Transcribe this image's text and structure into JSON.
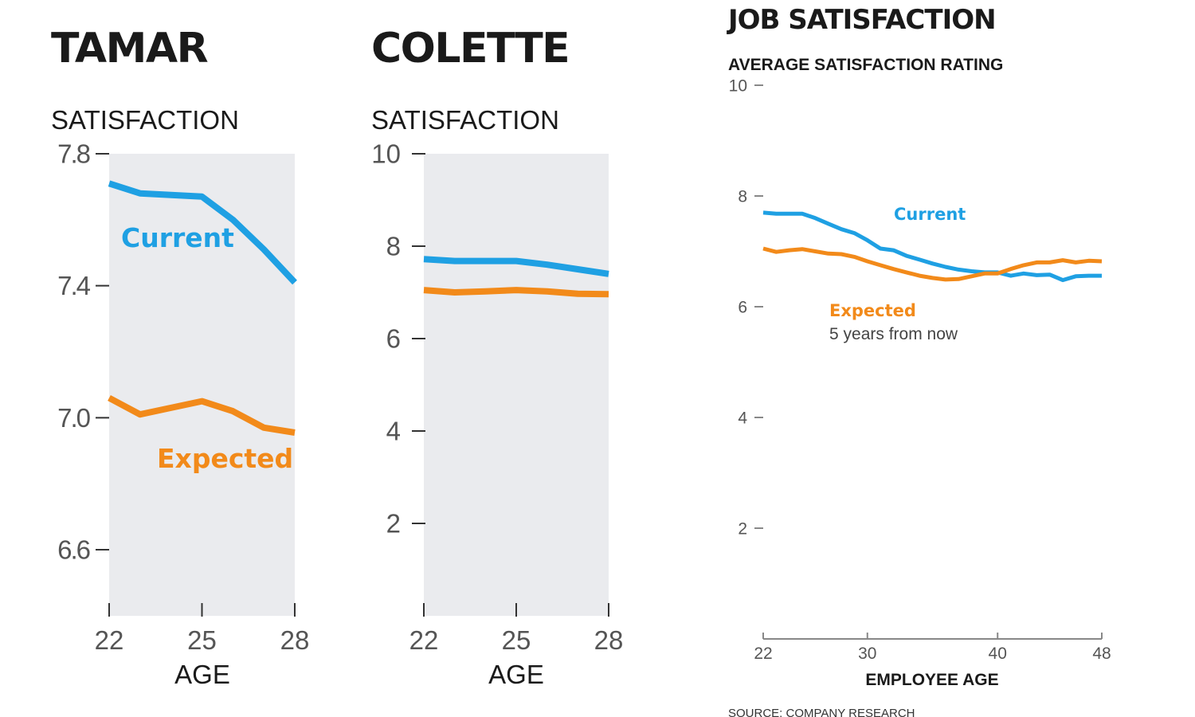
{
  "colors": {
    "current": "#1fa0e3",
    "expected": "#f28a1a",
    "panel_bg": "#eaebee",
    "text": "#1a1a1a",
    "axis": "#333333"
  },
  "chart_data": [
    {
      "type": "line",
      "title": "TAMAR",
      "ylabel": "SATISFACTION",
      "xlabel": "AGE",
      "ylim": [
        6.6,
        7.8
      ],
      "y_ticks": [
        7.8,
        7.4,
        7.0,
        6.6
      ],
      "y_tick_labels": [
        "7.8",
        "7.4",
        "7.0",
        "6.6"
      ],
      "xlim": [
        22,
        28
      ],
      "x_ticks": [
        22,
        25,
        28
      ],
      "x_tick_labels": [
        "22",
        "25",
        "28"
      ],
      "series": [
        {
          "name": "Current",
          "key": "current",
          "x": [
            22,
            23,
            24,
            25,
            26,
            27,
            28
          ],
          "y": [
            7.71,
            7.68,
            7.675,
            7.67,
            7.6,
            7.51,
            7.41
          ]
        },
        {
          "name": "Expected",
          "key": "expected",
          "x": [
            22,
            23,
            24,
            25,
            26,
            27,
            28
          ],
          "y": [
            7.06,
            7.01,
            7.03,
            7.05,
            7.02,
            6.97,
            6.955
          ]
        }
      ]
    },
    {
      "type": "line",
      "title": "COLETTE",
      "ylabel": "SATISFACTION",
      "xlabel": "AGE",
      "ylim": [
        0,
        10
      ],
      "y_ticks": [
        10,
        8,
        6,
        4,
        2
      ],
      "y_tick_labels": [
        "10",
        "8",
        "6",
        "4",
        "2"
      ],
      "xlim": [
        22,
        28
      ],
      "x_ticks": [
        22,
        25,
        28
      ],
      "x_tick_labels": [
        "22",
        "25",
        "28"
      ],
      "series": [
        {
          "key": "current",
          "x": [
            22,
            23,
            24,
            25,
            26,
            27,
            28
          ],
          "y": [
            7.72,
            7.68,
            7.68,
            7.68,
            7.6,
            7.5,
            7.4
          ]
        },
        {
          "key": "expected",
          "x": [
            22,
            23,
            24,
            25,
            26,
            27,
            28
          ],
          "y": [
            7.05,
            7.0,
            7.02,
            7.05,
            7.02,
            6.97,
            6.96
          ]
        }
      ]
    },
    {
      "type": "line",
      "title": "JOB SATISFACTION",
      "subtitle": "AVERAGE SATISFACTION RATING",
      "xlabel": "EMPLOYEE AGE",
      "source": "SOURCE: COMPANY RESEARCH",
      "ylim": [
        0,
        10
      ],
      "y_ticks": [
        10,
        8,
        6,
        4,
        2
      ],
      "y_tick_labels": [
        "10",
        "8",
        "6",
        "4",
        "2"
      ],
      "xlim": [
        22,
        48
      ],
      "x_ticks": [
        22,
        30,
        40,
        48
      ],
      "x_tick_labels": [
        "22",
        "30",
        "40",
        "48"
      ],
      "annotations": {
        "current": "Current",
        "expected": "Expected",
        "expected_note": "5 years from now"
      },
      "series": [
        {
          "name": "Current",
          "key": "current",
          "x": [
            22,
            23,
            24,
            25,
            26,
            27,
            28,
            29,
            30,
            31,
            32,
            33,
            34,
            35,
            36,
            37,
            38,
            39,
            40,
            41,
            42,
            43,
            44,
            45,
            46,
            47,
            48
          ],
          "y": [
            7.7,
            7.68,
            7.68,
            7.68,
            7.6,
            7.5,
            7.4,
            7.33,
            7.2,
            7.05,
            7.02,
            6.92,
            6.85,
            6.78,
            6.72,
            6.67,
            6.64,
            6.62,
            6.62,
            6.56,
            6.6,
            6.57,
            6.58,
            6.48,
            6.55,
            6.56,
            6.56
          ]
        },
        {
          "name": "Expected",
          "key": "expected",
          "x": [
            22,
            23,
            24,
            25,
            26,
            27,
            28,
            29,
            30,
            31,
            32,
            33,
            34,
            35,
            36,
            37,
            38,
            39,
            40,
            41,
            42,
            43,
            44,
            45,
            46,
            47,
            48
          ],
          "y": [
            7.05,
            6.99,
            7.02,
            7.04,
            7.0,
            6.96,
            6.95,
            6.9,
            6.82,
            6.75,
            6.68,
            6.62,
            6.56,
            6.52,
            6.49,
            6.5,
            6.55,
            6.6,
            6.6,
            6.68,
            6.75,
            6.8,
            6.8,
            6.84,
            6.8,
            6.83,
            6.82
          ]
        }
      ]
    }
  ]
}
